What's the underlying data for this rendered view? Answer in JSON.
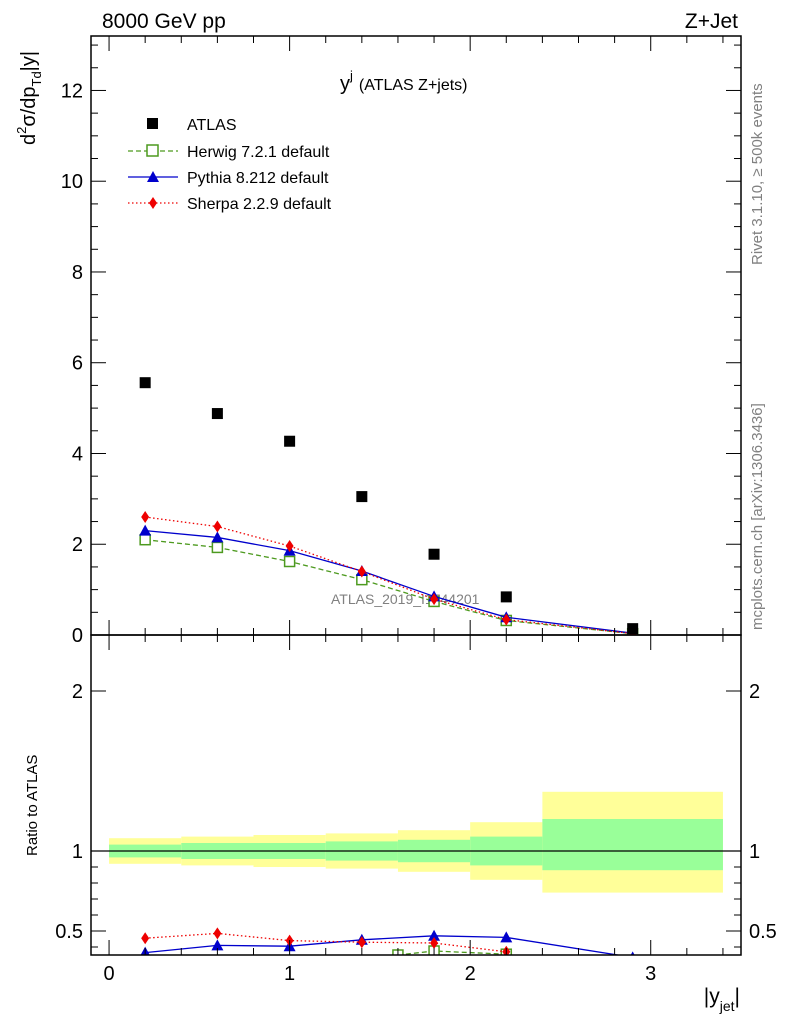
{
  "header": {
    "energy_label": "8000 GeV pp",
    "process_label": "Z+Jet",
    "plot_title_main": "y",
    "plot_title_sup": "j",
    "plot_title_suffix": "(ATLAS Z+jets)",
    "watermark": "ATLAS_2019_I1744201"
  },
  "side_labels": {
    "rivet": "Rivet 3.1.10, ≥ 500k events",
    "mcplots": "mcplots.cern.ch [arXiv:1306.3436]"
  },
  "axis_labels": {
    "main_y": {
      "a": "d",
      "sup": "2",
      "b": "σ/dp",
      "sub": "Td",
      "c": "|y|"
    },
    "ratio_y": "Ratio to ATLAS",
    "x": {
      "main": "|y",
      "sub": "jet",
      "end": "|"
    }
  },
  "legend": {
    "atlas": "ATLAS",
    "herwig": "Herwig 7.2.1 default",
    "pythia": "Pythia 8.212 default",
    "sherpa": "Sherpa 2.2.9 default"
  },
  "colors": {
    "atlas": "#000000",
    "herwig": "#4d9a1f",
    "pythia": "#0000cc",
    "sherpa": "#ee0000",
    "band_outer": "#ffff99",
    "band_inner": "#99ff99"
  },
  "chart_data": {
    "type": "scatter",
    "x": [
      0.2,
      0.6,
      1.0,
      1.4,
      1.8,
      2.2,
      2.9
    ],
    "bins": [
      [
        0.0,
        0.4
      ],
      [
        0.4,
        0.8
      ],
      [
        0.8,
        1.2
      ],
      [
        1.2,
        1.6
      ],
      [
        1.6,
        2.0
      ],
      [
        2.0,
        2.4
      ],
      [
        2.4,
        3.4
      ]
    ],
    "main": {
      "xlim": [
        -0.1,
        3.5
      ],
      "ylim": [
        0,
        13.2
      ],
      "yticks": [
        0,
        2,
        4,
        6,
        8,
        10,
        12
      ],
      "series": [
        {
          "name": "ATLAS",
          "values": [
            5.56,
            4.88,
            4.27,
            3.05,
            1.78,
            0.84,
            0.14
          ]
        },
        {
          "name": "Herwig 7.2.1 default",
          "values": [
            2.1,
            1.93,
            1.62,
            1.22,
            0.74,
            0.32,
            0.03
          ]
        },
        {
          "name": "Pythia 8.212 default",
          "values": [
            2.3,
            2.15,
            1.86,
            1.41,
            0.85,
            0.39,
            0.04
          ]
        },
        {
          "name": "Sherpa 2.2.9 default",
          "values": [
            2.6,
            2.39,
            1.96,
            1.4,
            0.79,
            0.34,
            0.03
          ]
        }
      ]
    },
    "ratio": {
      "ylim": [
        0.35,
        2.35
      ],
      "yticks": [
        0.5,
        1,
        2
      ],
      "yticklabels": [
        "0.5",
        "1",
        "2"
      ],
      "xticks": [
        0,
        1,
        2,
        3
      ],
      "xticklabels": [
        "0",
        "1",
        "2",
        "3"
      ],
      "band_outer": [
        [
          0.92,
          1.08
        ],
        [
          0.91,
          1.09
        ],
        [
          0.9,
          1.1
        ],
        [
          0.89,
          1.11
        ],
        [
          0.87,
          1.13
        ],
        [
          0.82,
          1.18
        ],
        [
          0.74,
          1.37
        ]
      ],
      "band_inner": [
        [
          0.96,
          1.04
        ],
        [
          0.95,
          1.05
        ],
        [
          0.95,
          1.05
        ],
        [
          0.94,
          1.06
        ],
        [
          0.93,
          1.07
        ],
        [
          0.91,
          1.09
        ],
        [
          0.88,
          1.2
        ]
      ],
      "series": [
        {
          "name": "Herwig 7.2.1 default",
          "x": [
            1.6,
            1.8,
            2.2
          ],
          "values": [
            0.35,
            0.375,
            0.355
          ]
        },
        {
          "name": "Pythia 8.212 default",
          "x": [
            0.2,
            0.6,
            1.0,
            1.4,
            1.8,
            2.2,
            2.9
          ],
          "values": [
            0.365,
            0.41,
            0.405,
            0.445,
            0.47,
            0.46,
            0.335
          ]
        },
        {
          "name": "Sherpa 2.2.9 default",
          "x": [
            0.2,
            0.6,
            1.0,
            1.4,
            1.8,
            2.2
          ],
          "values": [
            0.455,
            0.485,
            0.44,
            0.43,
            0.425,
            0.37
          ]
        }
      ]
    }
  }
}
